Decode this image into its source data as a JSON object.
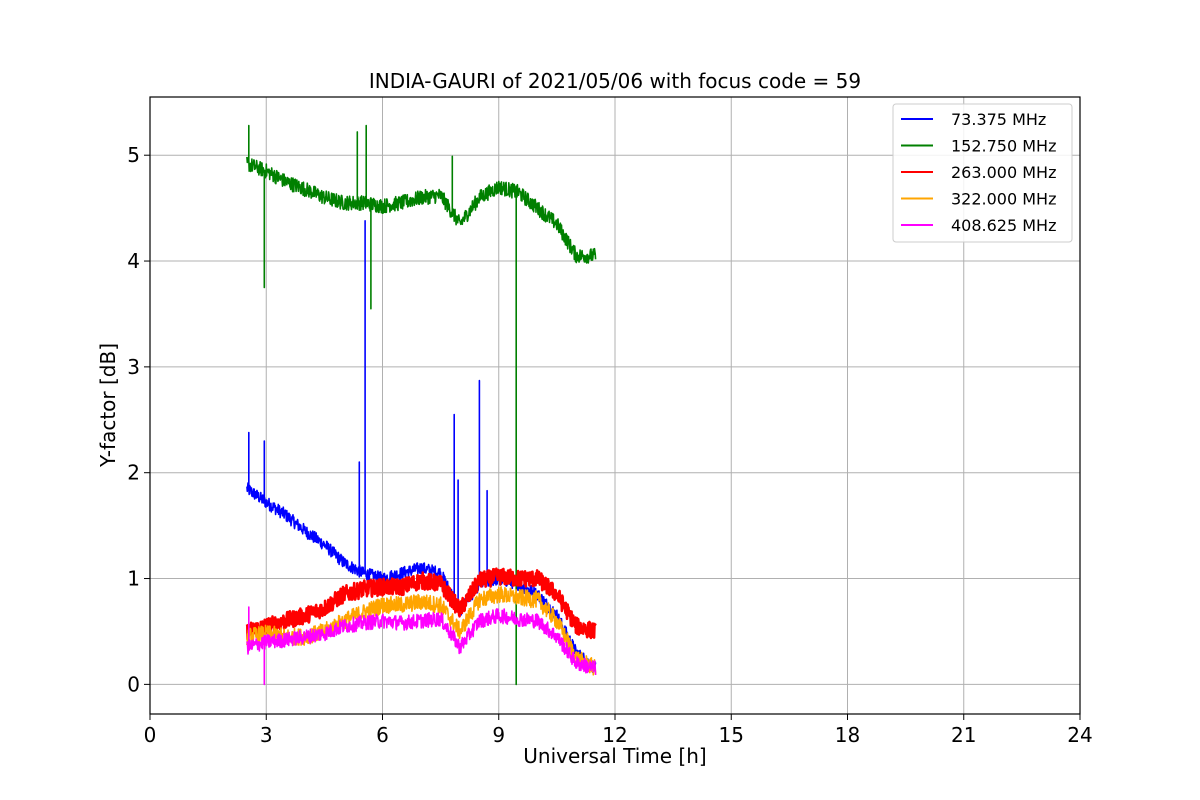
{
  "chart_data": {
    "type": "line",
    "title": "INDIA-GAURI of 2021/05/06 with focus code = 59",
    "xlabel": "Universal Time [h]",
    "ylabel": "Y-factor [dB]",
    "xlim": [
      0,
      24
    ],
    "ylim": [
      -0.28,
      5.55
    ],
    "xticks": [
      0,
      3,
      6,
      9,
      12,
      15,
      18,
      21,
      24
    ],
    "yticks": [
      0,
      1,
      2,
      3,
      4,
      5
    ],
    "grid": true,
    "legend_position": "top-right",
    "series": [
      {
        "name": " 73.375 MHz",
        "color": "#0000ff",
        "x": [
          2.5,
          3.0,
          3.5,
          4.0,
          4.5,
          5.0,
          5.5,
          6.0,
          6.5,
          7.0,
          7.5,
          8.0,
          8.5,
          9.0,
          9.5,
          10.0,
          10.5,
          11.0,
          11.5
        ],
        "y": [
          1.85,
          1.72,
          1.6,
          1.45,
          1.32,
          1.15,
          1.05,
          1.0,
          1.05,
          1.1,
          1.05,
          0.7,
          0.95,
          1.0,
          0.95,
          0.85,
          0.65,
          0.3,
          0.15
        ],
        "spikes": [
          [
            2.55,
            2.38
          ],
          [
            2.95,
            2.3
          ],
          [
            5.55,
            4.38
          ],
          [
            7.85,
            2.55
          ],
          [
            7.95,
            1.93
          ],
          [
            8.5,
            2.87
          ],
          [
            8.7,
            1.83
          ],
          [
            5.4,
            2.1
          ]
        ],
        "noise": 0.06
      },
      {
        "name": "152.750 MHz",
        "color": "#008000",
        "x": [
          2.5,
          3.0,
          3.5,
          4.0,
          4.5,
          5.0,
          5.5,
          6.0,
          6.5,
          7.0,
          7.5,
          8.0,
          8.5,
          9.0,
          9.5,
          10.0,
          10.5,
          11.0,
          11.5
        ],
        "y": [
          4.92,
          4.85,
          4.75,
          4.68,
          4.6,
          4.55,
          4.55,
          4.52,
          4.55,
          4.6,
          4.62,
          4.35,
          4.6,
          4.7,
          4.65,
          4.5,
          4.35,
          4.05,
          4.05
        ],
        "spikes": [
          [
            2.55,
            5.28
          ],
          [
            2.95,
            3.75
          ],
          [
            5.35,
            5.22
          ],
          [
            5.58,
            5.28
          ],
          [
            5.7,
            3.55
          ],
          [
            7.8,
            4.99
          ],
          [
            9.45,
            0.0
          ]
        ],
        "noise": 0.07
      },
      {
        "name": "263.000 MHz",
        "color": "#ff0000",
        "x": [
          2.5,
          3.0,
          3.5,
          4.0,
          4.5,
          5.0,
          5.5,
          6.0,
          6.5,
          7.0,
          7.5,
          8.0,
          8.5,
          9.0,
          9.5,
          10.0,
          10.5,
          11.0,
          11.5
        ],
        "y": [
          0.5,
          0.55,
          0.6,
          0.65,
          0.72,
          0.85,
          0.9,
          0.92,
          0.92,
          0.98,
          0.95,
          0.7,
          0.98,
          1.02,
          1.0,
          1.0,
          0.85,
          0.55,
          0.5
        ],
        "spikes": [],
        "noise": 0.08
      },
      {
        "name": "322.000 MHz",
        "color": "#ffa500",
        "x": [
          2.5,
          3.0,
          3.5,
          4.0,
          4.5,
          5.0,
          5.5,
          6.0,
          6.5,
          7.0,
          7.5,
          8.0,
          8.5,
          9.0,
          9.5,
          10.0,
          10.5,
          11.0,
          11.5
        ],
        "y": [
          0.45,
          0.48,
          0.45,
          0.45,
          0.5,
          0.6,
          0.68,
          0.75,
          0.75,
          0.78,
          0.75,
          0.5,
          0.8,
          0.85,
          0.82,
          0.8,
          0.6,
          0.25,
          0.15
        ],
        "spikes": [],
        "noise": 0.08
      },
      {
        "name": "408.625 MHz",
        "color": "#ff00ff",
        "x": [
          2.5,
          3.0,
          3.5,
          4.0,
          4.5,
          5.0,
          5.5,
          6.0,
          6.5,
          7.0,
          7.5,
          8.0,
          8.5,
          9.0,
          9.5,
          10.0,
          10.5,
          11.0,
          11.5
        ],
        "y": [
          0.35,
          0.4,
          0.42,
          0.45,
          0.48,
          0.55,
          0.58,
          0.6,
          0.58,
          0.6,
          0.62,
          0.35,
          0.6,
          0.65,
          0.62,
          0.6,
          0.45,
          0.2,
          0.15
        ],
        "spikes": [
          [
            2.55,
            0.73
          ],
          [
            2.95,
            0.0
          ]
        ],
        "noise": 0.07
      }
    ]
  }
}
